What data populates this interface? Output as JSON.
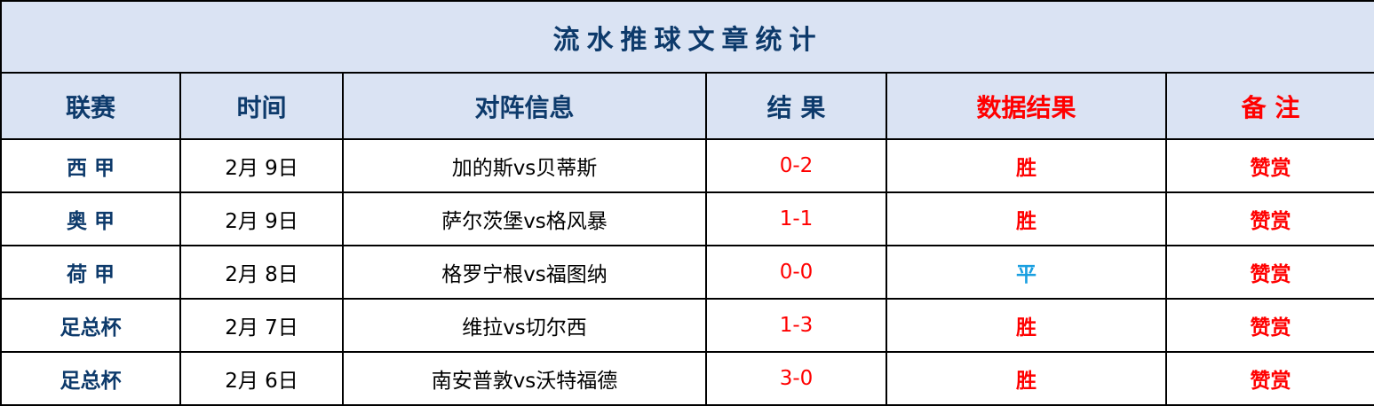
{
  "title": "流水推球文章统计",
  "headers": [
    "联赛",
    "时间",
    "对阵信息",
    "结 果",
    "数据结果",
    "备 注"
  ],
  "colors": {
    "header_bg": "#dae3f3",
    "header_text": "#0d3a6b",
    "red": "#ff0000",
    "draw": "#1a9fe0"
  },
  "rows": [
    {
      "league": "西 甲",
      "date": "2月 9日",
      "match": "加的斯vs贝蒂斯",
      "score": "0-2",
      "result": "胜",
      "note": "赞赏"
    },
    {
      "league": "奥 甲",
      "date": "2月 9日",
      "match": "萨尔茨堡vs格风暴",
      "score": "1-1",
      "result": "胜",
      "note": "赞赏"
    },
    {
      "league": "荷 甲",
      "date": "2月 8日",
      "match": "格罗宁根vs福图纳",
      "score": "0-0",
      "result": "平",
      "note": "赞赏"
    },
    {
      "league": "足总杯",
      "date": "2月 7日",
      "match": "维拉vs切尔西",
      "score": "1-3",
      "result": "胜",
      "note": "赞赏"
    },
    {
      "league": "足总杯",
      "date": "2月 6日",
      "match": "南安普敦vs沃特福德",
      "score": "3-0",
      "result": "胜",
      "note": "赞赏"
    }
  ]
}
